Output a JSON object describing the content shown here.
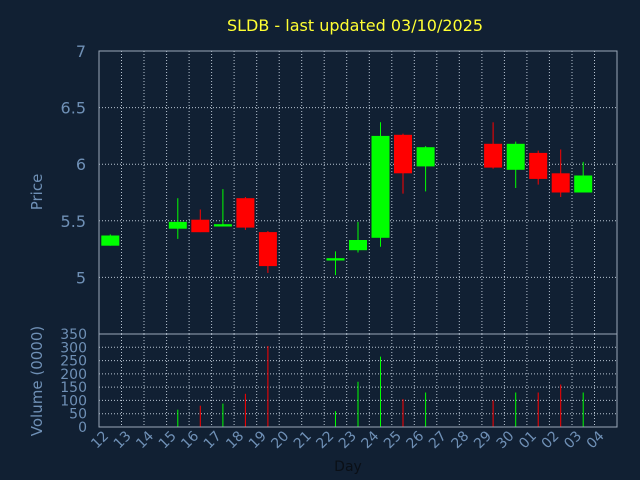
{
  "chart_data": {
    "type": "candlestick",
    "title": "SLDB - last updated 03/10/2025",
    "price_axis": {
      "label": "Price",
      "ylim": [
        4.5,
        7
      ],
      "ticks": [
        "5",
        "5.5",
        "6",
        "6.5",
        "7"
      ]
    },
    "volume_axis": {
      "label": "Volume (0000)",
      "ylim": [
        0,
        350
      ],
      "ticks": [
        "0",
        "50",
        "100",
        "150",
        "200",
        "250",
        "300",
        "350"
      ]
    },
    "x_axis": {
      "label": "Day",
      "ticks": [
        "12",
        "13",
        "14",
        "15",
        "16",
        "17",
        "18",
        "19",
        "20",
        "21",
        "22",
        "23",
        "24",
        "25",
        "26",
        "27",
        "28",
        "29",
        "30",
        "01",
        "02",
        "03",
        "04"
      ]
    },
    "grid": true,
    "colors": {
      "up": "#00ff00",
      "down": "#ff0000",
      "grid": "#b8c4d2",
      "background": "#112033",
      "plot_border": "#9aa8b8"
    },
    "candles": [
      {
        "day": "12",
        "open": 5.28,
        "high": 5.38,
        "low": 5.28,
        "close": 5.37,
        "volume": 0
      },
      {
        "day": "15",
        "open": 5.43,
        "high": 5.7,
        "low": 5.34,
        "close": 5.49,
        "volume": 65
      },
      {
        "day": "16",
        "open": 5.51,
        "high": 5.6,
        "low": 5.4,
        "close": 5.4,
        "volume": 80
      },
      {
        "day": "17",
        "open": 5.45,
        "high": 5.78,
        "low": 5.45,
        "close": 5.47,
        "volume": 88
      },
      {
        "day": "18",
        "open": 5.7,
        "high": 5.71,
        "low": 5.42,
        "close": 5.44,
        "volume": 125
      },
      {
        "day": "19",
        "open": 5.4,
        "high": 5.41,
        "low": 5.04,
        "close": 5.1,
        "volume": 305
      },
      {
        "day": "22",
        "open": 5.15,
        "high": 5.23,
        "low": 5.02,
        "close": 5.17,
        "volume": 60
      },
      {
        "day": "23",
        "open": 5.24,
        "high": 5.49,
        "low": 5.22,
        "close": 5.33,
        "volume": 170
      },
      {
        "day": "24",
        "open": 5.35,
        "high": 6.37,
        "low": 5.27,
        "close": 6.25,
        "volume": 265
      },
      {
        "day": "25",
        "open": 6.26,
        "high": 6.27,
        "low": 5.74,
        "close": 5.92,
        "volume": 105
      },
      {
        "day": "26",
        "open": 5.98,
        "high": 6.16,
        "low": 5.76,
        "close": 6.15,
        "volume": 130
      },
      {
        "day": "29",
        "open": 6.18,
        "high": 6.37,
        "low": 5.96,
        "close": 5.97,
        "volume": 100
      },
      {
        "day": "30",
        "open": 5.95,
        "high": 6.2,
        "low": 5.79,
        "close": 6.18,
        "volume": 130
      },
      {
        "day": "01",
        "open": 6.1,
        "high": 6.12,
        "low": 5.82,
        "close": 5.87,
        "volume": 130
      },
      {
        "day": "02",
        "open": 5.92,
        "high": 6.13,
        "low": 5.71,
        "close": 5.75,
        "volume": 160
      },
      {
        "day": "03",
        "open": 5.75,
        "high": 6.02,
        "low": 5.75,
        "close": 5.9,
        "volume": 130
      }
    ]
  }
}
